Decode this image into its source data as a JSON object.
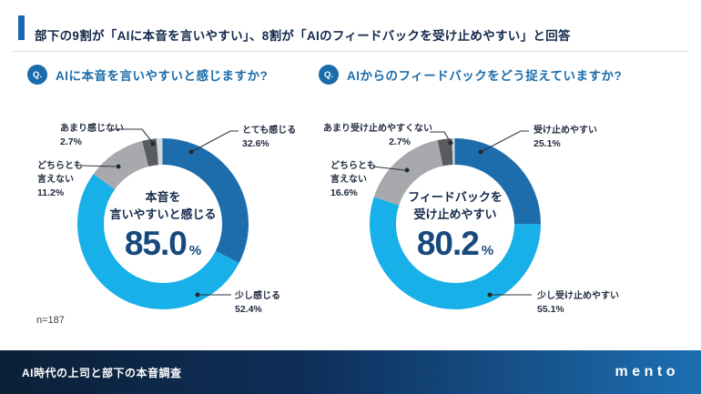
{
  "header": {
    "title": "部下の9割が「AIに本音を言いやすい」、8割が「AIのフィードバックを受け止めやすい」と回答"
  },
  "note": "n=187",
  "footer": {
    "title": "AI時代の上司と部下の本音調査",
    "logo": "mento"
  },
  "colors": {
    "accent_blue": "#1a68b2",
    "question_blue": "#1b6cab",
    "big_number_blue": "#17497e",
    "title_navy": "#13294b",
    "footer_gradient_left": "#0b2038",
    "footer_gradient_right": "#1d6fb2"
  },
  "chart_data": [
    {
      "type": "pie",
      "badge": "Q.",
      "question": "AIに本音を言いやすいと感じますか?",
      "center": {
        "line1": "本音を",
        "line2": "言いやすいと感じる",
        "value": "85.0",
        "unit": "%"
      },
      "segments": [
        {
          "label": "とても感じる",
          "pct": "32.6%",
          "value": 32.6,
          "color": "#1d6dac"
        },
        {
          "label": "少し感じる",
          "pct": "52.4%",
          "value": 52.4,
          "color": "#18b0e8"
        },
        {
          "label": "どちらとも",
          "label2": "言えない",
          "pct": "11.2%",
          "value": 11.2,
          "color": "#a7a9ac"
        },
        {
          "label": "あまり感じない",
          "pct": "2.7%",
          "value": 2.7,
          "color": "#595b5f"
        }
      ],
      "rest": {
        "value": 1.1,
        "color": "#cdd8df"
      },
      "legend_position": "callout-labels"
    },
    {
      "type": "pie",
      "badge": "Q.",
      "question": "AIからのフィードバックをどう捉えていますか?",
      "center": {
        "line1": "フィードバックを",
        "line2": "受け止めやすい",
        "value": "80.2",
        "unit": "%"
      },
      "segments": [
        {
          "label": "受け止めやすい",
          "pct": "25.1%",
          "value": 25.1,
          "color": "#1d6dac"
        },
        {
          "label": "少し受け止めやすい",
          "pct": "55.1%",
          "value": 55.1,
          "color": "#18b0e8"
        },
        {
          "label": "どちらとも",
          "label2": "言えない",
          "pct": "16.6%",
          "value": 16.6,
          "color": "#a7a9ac"
        },
        {
          "label": "あまり受け止めやすくない",
          "pct": "2.7%",
          "value": 2.7,
          "color": "#595b5f"
        }
      ],
      "rest": {
        "value": 0.5,
        "color": "#cdd8df"
      },
      "legend_position": "callout-labels"
    }
  ]
}
